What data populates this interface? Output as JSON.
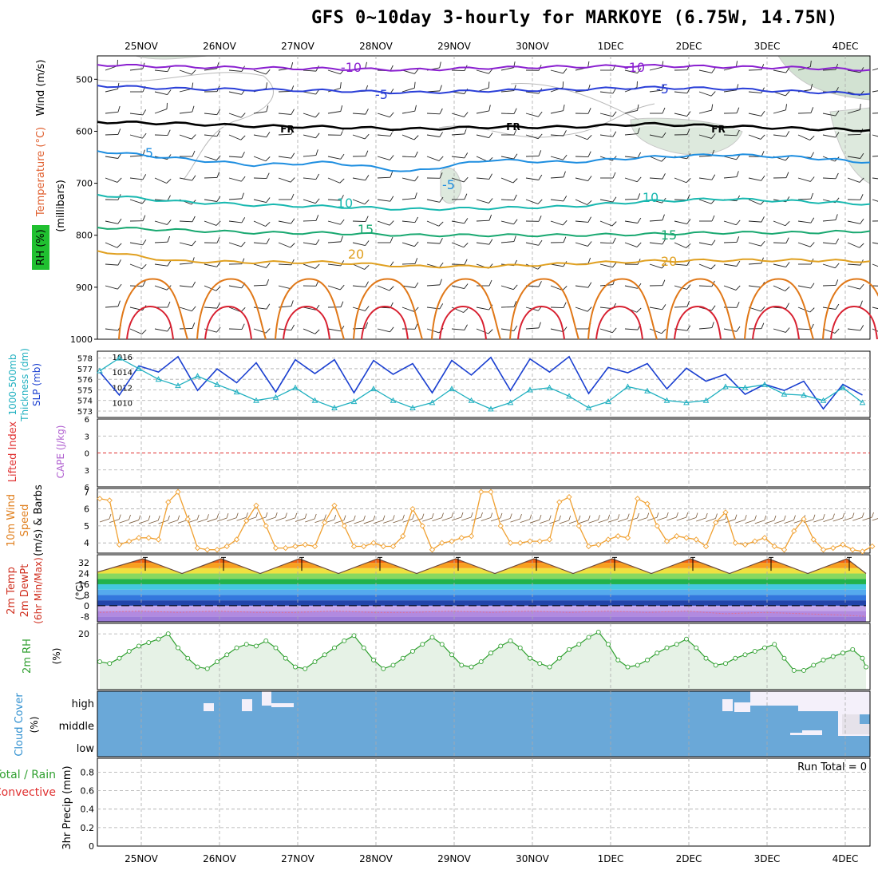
{
  "title": "GFS 0~10day 3-hourly for MARKOYE (6.75W, 14.75N)",
  "dates": [
    "25NOV",
    "26NOV",
    "27NOV",
    "28NOV",
    "29NOV",
    "30NOV",
    "1DEC",
    "2DEC",
    "3DEC",
    "4DEC"
  ],
  "colors": {
    "grid": "#aaaaaa",
    "frame": "#000000",
    "iso_m10": "#8a1fd0",
    "iso_m5": "#2a3fd8",
    "iso_fr": "#000000",
    "iso_5": "#1e8ee0",
    "iso_10": "#18b8b0",
    "iso_15": "#18a870",
    "iso_20": "#e0a020",
    "iso_25": "#e07818",
    "iso_30": "#d82030",
    "slp": "#1a3fd0",
    "thickness": "#20b0c0",
    "lifted": "#e03030",
    "wind10": "#f0a030",
    "rh": "#30a030",
    "cloud": "#6aa8d8",
    "cloud_gap": "#f4f0fa"
  },
  "panels": {
    "upper": {
      "ylabels": [
        "Wind (m/s)",
        "Temperature (°C)",
        "RH (%)",
        "(millibars)"
      ],
      "y_ticks": [
        "500",
        "600",
        "700",
        "800",
        "900",
        "1000"
      ],
      "iso_labels": [
        "-10",
        "-10",
        "-5",
        "-5",
        "FR",
        "FR",
        "FR",
        "5",
        "-5",
        "10",
        "10",
        "15",
        "15",
        "20",
        "20"
      ]
    },
    "slp": {
      "ylabels": [
        "1000-500mb",
        "Thickness (dm)",
        "SLP (mb)"
      ],
      "left_ticks": [
        "578",
        "577",
        "576",
        "575",
        "574",
        "573"
      ],
      "right_ticks": [
        "1016",
        "1014",
        "1012",
        "1010"
      ]
    },
    "cape": {
      "ylabels": [
        "Lifted Index",
        "CAPE (J/kg)"
      ],
      "ticks": [
        "6",
        "3",
        "0",
        "3",
        "6"
      ]
    },
    "wind10": {
      "ylabels": [
        "10m Wind",
        "Speed",
        "(m/s) & Barbs"
      ],
      "ticks": [
        "7",
        "6",
        "5",
        "4"
      ]
    },
    "temp2m": {
      "ylabels": [
        "2m Temp",
        "2m DewPt",
        "(6hr Min/Max)",
        "(°C)"
      ],
      "ticks": [
        "32",
        "24",
        "16",
        "8",
        "0",
        "-8"
      ]
    },
    "rh2m": {
      "ylabels": [
        "2m RH",
        "(%)"
      ],
      "ticks": [
        "20"
      ]
    },
    "cloud": {
      "ylabels": [
        "Cloud Cover",
        "(%)"
      ],
      "levels": [
        "high",
        "middle",
        "low"
      ]
    },
    "precip": {
      "ylabels": [
        "Total / Rain",
        "Convective",
        "3hr Precip (mm)"
      ],
      "ticks": [
        "0.8",
        "0.6",
        "0.4",
        "0.2",
        "0"
      ],
      "run_total": "Run Total = 0"
    }
  },
  "chart_data": [
    {
      "type": "line",
      "title": "Upper-air temperature isotherms (°C) vs pressure",
      "ylabel": "millibars",
      "ylim": [
        1000,
        455
      ],
      "x_days": [
        0,
        1,
        2,
        3,
        4,
        5,
        6,
        7,
        8,
        9,
        9.8
      ],
      "series": [
        {
          "name": "-10",
          "pressure": [
            472,
            476,
            478,
            480,
            482,
            478,
            476,
            474,
            476,
            478,
            482
          ]
        },
        {
          "name": "-5",
          "pressure": [
            512,
            518,
            520,
            522,
            526,
            522,
            520,
            516,
            518,
            524,
            528
          ]
        },
        {
          "name": "FR",
          "pressure": [
            582,
            585,
            590,
            592,
            596,
            592,
            592,
            586,
            590,
            595,
            598
          ]
        },
        {
          "name": "5",
          "pressure": [
            638,
            652,
            665,
            660,
            678,
            655,
            660,
            650,
            645,
            650,
            660
          ]
        },
        {
          "name": "10",
          "pressure": [
            722,
            735,
            742,
            745,
            750,
            748,
            745,
            735,
            730,
            735,
            740
          ]
        },
        {
          "name": "15",
          "pressure": [
            785,
            790,
            795,
            796,
            800,
            800,
            800,
            798,
            795,
            795,
            792
          ]
        },
        {
          "name": "20",
          "pressure": [
            830,
            850,
            852,
            852,
            860,
            860,
            855,
            850,
            848,
            848,
            850
          ]
        }
      ]
    },
    {
      "type": "line",
      "title": "SLP (mb) and 1000-500mb thickness (dm)",
      "x_hours": [
        0,
        6,
        12,
        18,
        24,
        30,
        36,
        42,
        48,
        54,
        60,
        66,
        72,
        78,
        84,
        90,
        96,
        102,
        108,
        114,
        120,
        126,
        132,
        138,
        144,
        150,
        156,
        162,
        168,
        174,
        180,
        186,
        192,
        198,
        204,
        210,
        216,
        222,
        228,
        234
      ],
      "series": [
        {
          "name": "SLP",
          "axis": "right",
          "ylim": [
            1008.5,
            1016.5
          ],
          "values": [
            1014.0,
            1011.0,
            1014.8,
            1014.0,
            1016.0,
            1011.6,
            1014.4,
            1012.6,
            1015.2,
            1011.4,
            1015.6,
            1013.8,
            1015.6,
            1011.3,
            1015.5,
            1013.7,
            1015.1,
            1011.3,
            1015.5,
            1013.6,
            1015.9,
            1011.6,
            1015.7,
            1014.0,
            1016.0,
            1011.2,
            1014.6,
            1013.9,
            1015.1,
            1011.8,
            1014.5,
            1012.8,
            1013.7,
            1011.1,
            1012.4,
            1011.6,
            1012.8,
            1009.2,
            1012.4,
            1011.0
          ]
        },
        {
          "name": "Thickness",
          "axis": "left",
          "ylim": [
            572.7,
            578.5
          ],
          "values": [
            576.8,
            578.0,
            577.0,
            576.0,
            575.4,
            576.3,
            575.5,
            574.8,
            574.0,
            574.3,
            575.2,
            574.0,
            573.3,
            573.9,
            575.1,
            574.0,
            573.3,
            573.8,
            575.1,
            574.0,
            573.2,
            573.8,
            575.0,
            575.2,
            574.4,
            573.3,
            573.9,
            575.3,
            574.9,
            574.0,
            573.8,
            574.0,
            575.3,
            575.2,
            575.5,
            574.6,
            574.5,
            574.0,
            575.2,
            573.8
          ]
        }
      ]
    },
    {
      "type": "line",
      "title": "Lifted Index / CAPE",
      "ylim": [
        -6,
        6
      ],
      "series": [
        {
          "name": "Lifted Index zero line",
          "values": [
            0
          ]
        }
      ]
    },
    {
      "type": "line",
      "title": "10m Wind Speed (m/s)",
      "ylim": [
        3.4,
        7.2
      ],
      "x_hours": [
        0,
        3,
        6,
        9,
        12,
        15,
        18,
        21,
        24,
        27,
        30,
        33,
        36,
        39,
        42,
        45,
        48,
        51,
        54,
        57,
        60,
        63,
        66,
        69,
        72,
        75,
        78,
        81,
        84,
        87,
        90,
        93,
        96,
        99,
        102,
        105,
        108,
        111,
        114,
        117,
        120,
        123,
        126,
        129,
        132,
        135,
        138,
        141,
        144,
        147,
        150,
        153,
        156,
        159,
        162,
        165,
        168,
        171,
        174,
        177,
        180,
        183,
        186,
        189,
        192,
        195,
        198,
        201,
        204,
        207,
        210,
        213,
        216,
        219,
        222,
        225,
        228,
        231,
        234,
        237
      ],
      "values": [
        6.6,
        6.5,
        3.9,
        4.1,
        4.3,
        4.3,
        4.2,
        6.4,
        7.0,
        5.4,
        3.7,
        3.6,
        3.6,
        3.8,
        4.2,
        5.3,
        6.2,
        5.0,
        3.7,
        3.7,
        3.8,
        3.9,
        3.8,
        5.2,
        6.2,
        5.0,
        3.8,
        3.8,
        4.0,
        3.8,
        3.8,
        4.4,
        6.0,
        5.0,
        3.6,
        4.0,
        4.1,
        4.3,
        4.4,
        7.0,
        7.0,
        5.0,
        4.0,
        4.0,
        4.1,
        4.1,
        4.2,
        6.4,
        6.7,
        5.0,
        3.8,
        3.9,
        4.2,
        4.4,
        4.3,
        6.6,
        6.3,
        5.0,
        4.1,
        4.4,
        4.3,
        4.2,
        3.8,
        5.2,
        5.8,
        4.0,
        3.9,
        4.1,
        4.3,
        3.8,
        3.6,
        4.7,
        5.4,
        4.2,
        3.6,
        3.7,
        3.9,
        3.6,
        3.5,
        3.8
      ]
    },
    {
      "type": "area",
      "title": "2m Temp / 2m DewPt (°C)",
      "ylim": [
        -12,
        38
      ],
      "x_hours": [
        0,
        12,
        24,
        36,
        48,
        60,
        72,
        84,
        96,
        108,
        120,
        132,
        144,
        156,
        168,
        180,
        192,
        204,
        216,
        228,
        236
      ],
      "series": [
        {
          "name": "2m Temp",
          "values": [
            25,
            35,
            24,
            35,
            24,
            35,
            24,
            35,
            24,
            35,
            24,
            35,
            24,
            35,
            24,
            35,
            24,
            35,
            24,
            35,
            24
          ]
        },
        {
          "name": "2m DewPt",
          "values": [
            -5,
            -4,
            -5,
            -4,
            -5,
            -5,
            -4,
            -5,
            -5,
            -4,
            -5,
            -4,
            -5,
            -4,
            -5,
            -4,
            -6,
            -5,
            -6,
            -7,
            -8
          ]
        }
      ]
    },
    {
      "type": "line",
      "title": "2m RH (%)",
      "ylim": [
        4,
        23
      ],
      "x_hours": [
        0,
        3,
        6,
        9,
        12,
        15,
        18,
        21,
        24,
        27,
        30,
        33,
        36,
        39,
        42,
        45,
        48,
        51,
        54,
        57,
        60,
        63,
        66,
        69,
        72,
        75,
        78,
        81,
        84,
        87,
        90,
        93,
        96,
        99,
        102,
        105,
        108,
        111,
        114,
        117,
        120,
        123,
        126,
        129,
        132,
        135,
        138,
        141,
        144,
        147,
        150,
        153,
        156,
        159,
        162,
        165,
        168,
        171,
        174,
        177,
        180,
        183,
        186,
        189,
        192,
        195,
        198,
        201,
        204,
        207,
        210,
        213,
        216,
        219,
        222,
        225,
        228,
        231,
        234,
        237
      ],
      "values": [
        12,
        11.5,
        13,
        15,
        16.5,
        17.5,
        18.5,
        20,
        16,
        13,
        10.5,
        10,
        12,
        14,
        16,
        17,
        16.5,
        18,
        16,
        13,
        10.5,
        10,
        12,
        14,
        16,
        18,
        19.5,
        16,
        12.5,
        10,
        11,
        13,
        15,
        17,
        19,
        17,
        14,
        11,
        10.5,
        12,
        14.5,
        16.5,
        18,
        16,
        13,
        11.5,
        10.5,
        13,
        15.5,
        17,
        19,
        20.5,
        17,
        12.5,
        10.5,
        11,
        12.5,
        14.5,
        16,
        17,
        18.5,
        16,
        13,
        11,
        11.5,
        13,
        14,
        15,
        16,
        17,
        13,
        9.5,
        9.5,
        11,
        12.5,
        13.5,
        14.5,
        15.5,
        13,
        10.5
      ]
    },
    {
      "type": "heatmap",
      "title": "Cloud Cover (%)",
      "levels": [
        "high",
        "middle",
        "low"
      ],
      "series": [
        {
          "name": "Cloud Cover",
          "values": [
            100
          ]
        }
      ]
    },
    {
      "type": "bar",
      "title": "3hr Precip (mm)",
      "ylim": [
        0,
        0.95
      ],
      "series": [
        {
          "name": "Total / Rain",
          "values": [
            0
          ]
        },
        {
          "name": "Convective",
          "values": [
            0
          ]
        }
      ]
    }
  ]
}
